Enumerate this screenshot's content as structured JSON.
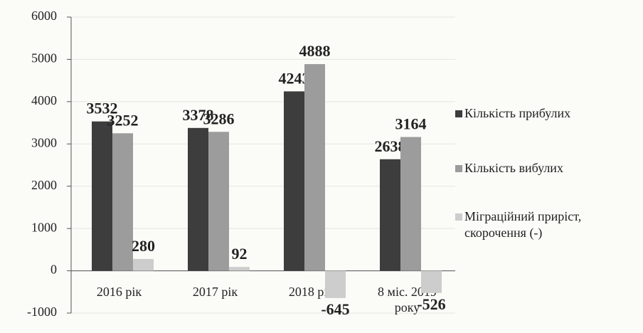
{
  "chart_data": {
    "type": "bar",
    "categories": [
      "2016 рік",
      "2017 рік",
      "2018 рік",
      "8 міс. 2019 року"
    ],
    "series": [
      {
        "name": "Кількість прибулих",
        "color": "#3d3d3d",
        "values": [
          3532,
          3378,
          4243,
          2638
        ]
      },
      {
        "name": "Кількість вибулих",
        "color": "#9c9c9c",
        "values": [
          3252,
          3286,
          4888,
          3164
        ]
      },
      {
        "name": "Міграційний приріст, скорочення (-)",
        "color": "#cdcdcd",
        "values": [
          280,
          92,
          -645,
          -526
        ]
      }
    ],
    "ylim": [
      -1000,
      6000
    ],
    "yticks": [
      -1000,
      0,
      1000,
      2000,
      3000,
      4000,
      5000,
      6000
    ],
    "grid": true,
    "legend": "right"
  }
}
